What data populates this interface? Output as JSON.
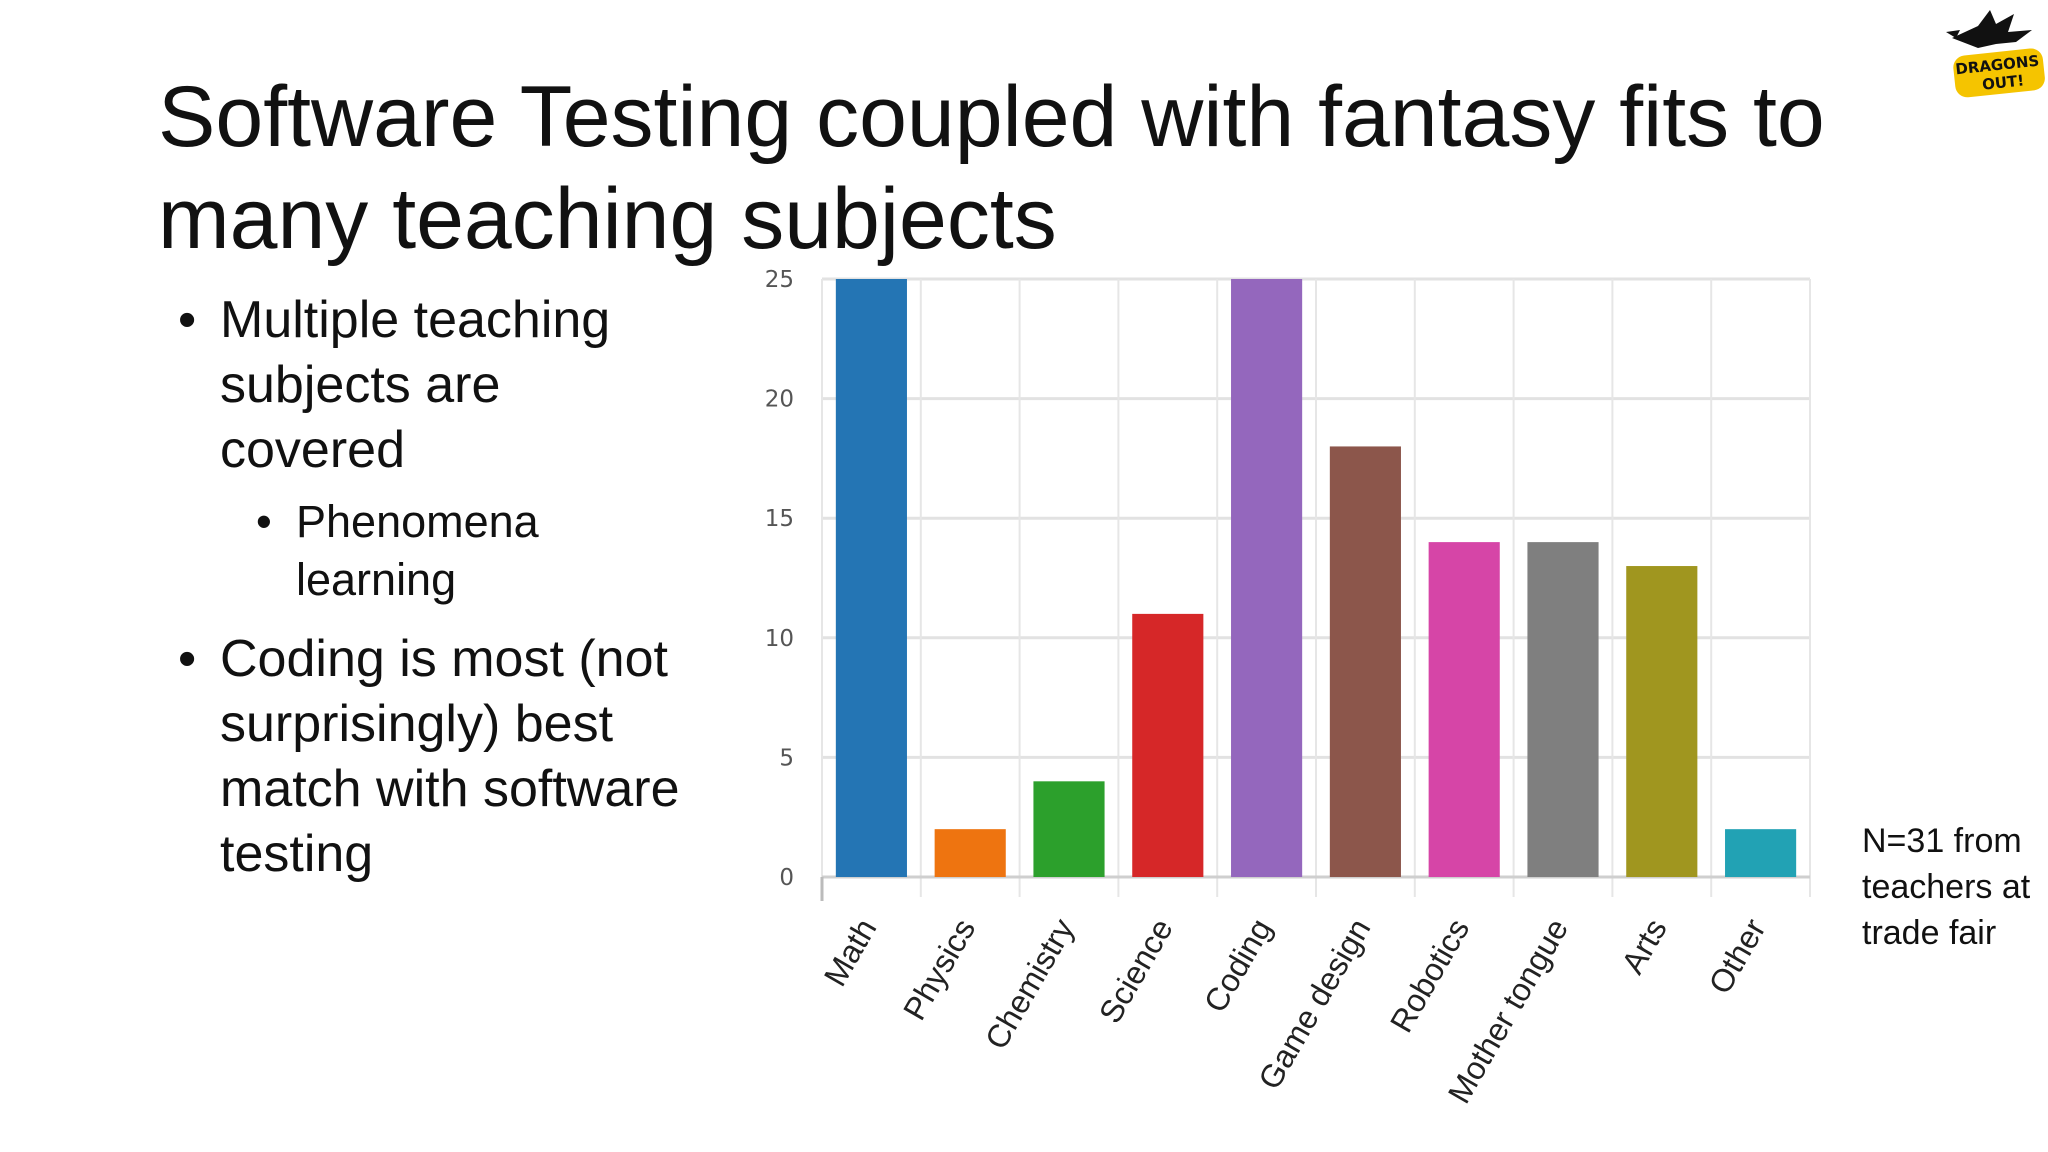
{
  "slide": {
    "title": "Software Testing coupled with fantasy fits to many teaching subjects",
    "bullets": [
      {
        "text": "Multiple teaching subjects are covered",
        "sub": [
          "Phenomena learning"
        ]
      },
      {
        "text": "Coding is most (not surprisingly) best match with software testing",
        "sub": []
      }
    ],
    "note": "N=31 from teachers at trade fair"
  },
  "logo": {
    "icon": "dragon-icon",
    "text": "DRAGONS OUT!"
  },
  "chart_data": {
    "type": "bar",
    "categories": [
      "Math",
      "Physics",
      "Chemistry",
      "Science",
      "Coding",
      "Game design",
      "Robotics",
      "Mother tongue",
      "Arts",
      "Other"
    ],
    "values": [
      25,
      2,
      4,
      11,
      25,
      18,
      14,
      14,
      13,
      2
    ],
    "colors": [
      "#2475b4",
      "#ee7410",
      "#2ca02c",
      "#d62728",
      "#9467bd",
      "#8c564b",
      "#d645a7",
      "#7f7f7f",
      "#a0961f",
      "#22a2b4"
    ],
    "yticks": [
      0,
      5,
      10,
      15,
      20,
      25
    ],
    "ylim": [
      0,
      25
    ],
    "grid": true,
    "title": "",
    "xlabel": "",
    "ylabel": ""
  }
}
